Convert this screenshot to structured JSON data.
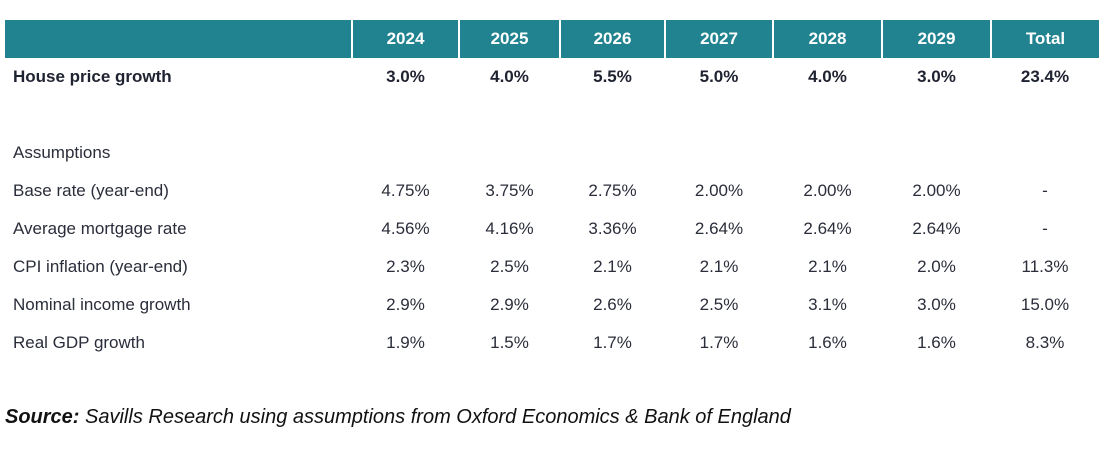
{
  "chart_data": {
    "type": "table",
    "columns": [
      "",
      "2024",
      "2025",
      "2026",
      "2027",
      "2028",
      "2029",
      "Total"
    ],
    "headline": {
      "label": "House price growth",
      "values": [
        "3.0%",
        "4.0%",
        "5.5%",
        "5.0%",
        "4.0%",
        "3.0%",
        "23.4%"
      ]
    },
    "section_label": "Assumptions",
    "rows": [
      {
        "label": "Base rate (year-end)",
        "values": [
          "4.75%",
          "3.75%",
          "2.75%",
          "2.00%",
          "2.00%",
          "2.00%",
          "-"
        ]
      },
      {
        "label": "Average mortgage rate",
        "values": [
          "4.56%",
          "4.16%",
          "3.36%",
          "2.64%",
          "2.64%",
          "2.64%",
          "-"
        ]
      },
      {
        "label": "CPI inflation (year-end)",
        "values": [
          "2.3%",
          "2.5%",
          "2.1%",
          "2.1%",
          "2.1%",
          "2.0%",
          "11.3%"
        ]
      },
      {
        "label": "Nominal income growth",
        "values": [
          "2.9%",
          "2.9%",
          "2.6%",
          "2.5%",
          "3.1%",
          "3.0%",
          "15.0%"
        ]
      },
      {
        "label": "Real GDP growth",
        "values": [
          "1.9%",
          "1.5%",
          "1.7%",
          "1.7%",
          "1.6%",
          "1.6%",
          "8.3%"
        ]
      }
    ],
    "header_color": "#21838f"
  },
  "source": {
    "lead": "Source:",
    "text": " Savills Research using assumptions from Oxford Economics & Bank of England"
  }
}
